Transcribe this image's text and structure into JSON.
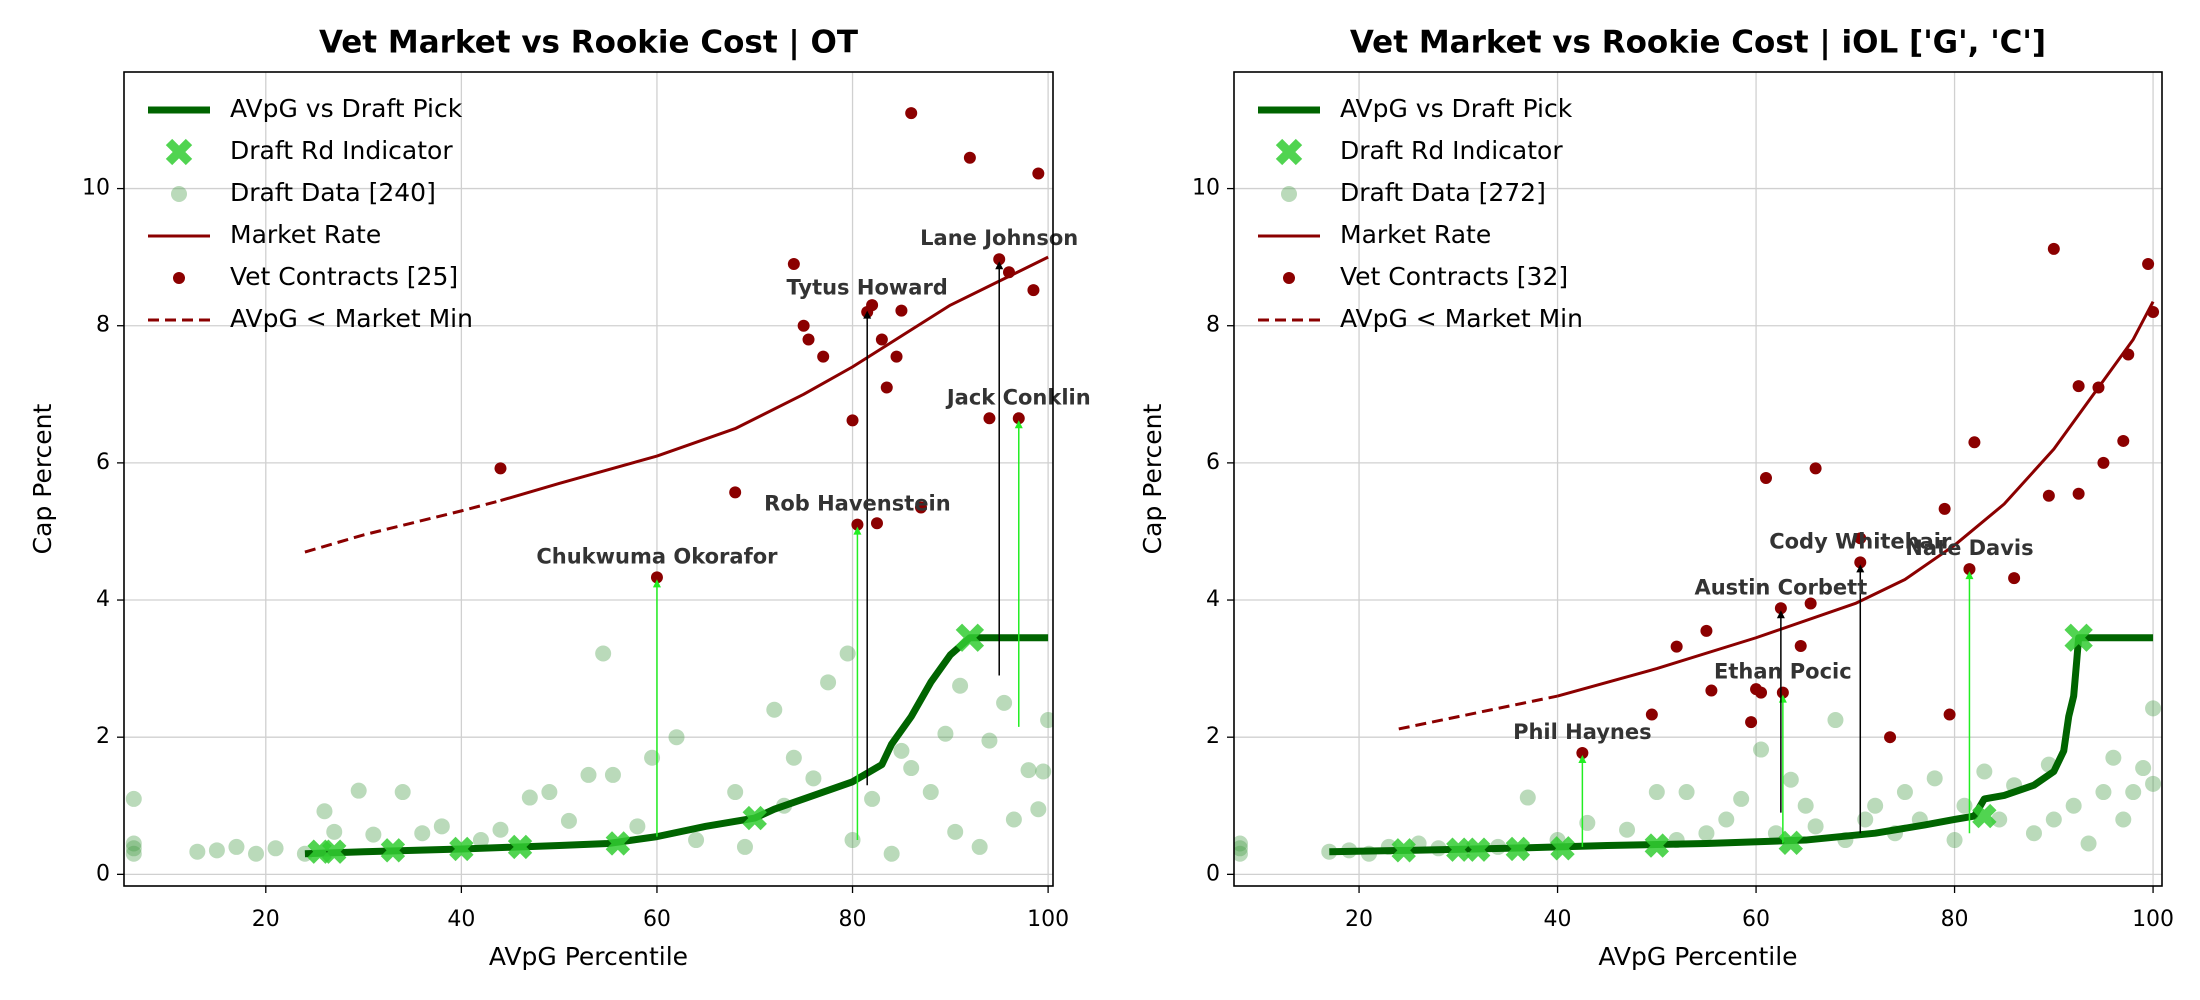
{
  "chart_data": [
    {
      "type": "scatter",
      "title": "Vet Market vs Rookie Cost | OT",
      "xlabel": "AVpG Percentile",
      "ylabel": "Cap Percent",
      "xlim": [
        5.5,
        100.5
      ],
      "ylim": [
        -0.17,
        11.7
      ],
      "xticks": [
        20,
        40,
        60,
        80,
        100
      ],
      "yticks": [
        0,
        2,
        4,
        6,
        8,
        10
      ],
      "grid": true,
      "legend": "upper left",
      "series": [
        {
          "name": "AVpG vs Draft Pick",
          "kind": "line",
          "color": "#006400",
          "x": [
            24,
            30,
            40,
            50,
            55,
            60,
            65,
            70,
            72,
            75,
            80,
            83,
            84,
            86,
            88,
            90,
            92,
            100
          ],
          "values": [
            0.3,
            0.33,
            0.37,
            0.42,
            0.45,
            0.55,
            0.7,
            0.82,
            0.95,
            1.1,
            1.35,
            1.6,
            1.9,
            2.3,
            2.8,
            3.2,
            3.45,
            3.45
          ]
        },
        {
          "name": "Draft Rd Indicator",
          "kind": "cross",
          "color": "#32cd32",
          "x": [
            25.5,
            27,
            33,
            40,
            46,
            56,
            70,
            92
          ],
          "values": [
            0.33,
            0.33,
            0.35,
            0.37,
            0.4,
            0.45,
            0.82,
            3.45
          ]
        },
        {
          "name": "Draft Data [240]",
          "kind": "faint",
          "color": "#4a9e4a",
          "x": [
            6.5,
            6.5,
            6.5,
            6.5,
            13,
            15,
            17,
            19,
            21,
            24,
            26,
            27,
            29.5,
            31,
            34,
            36,
            38,
            42,
            44,
            47,
            49,
            51,
            53,
            54.5,
            55.5,
            58,
            59.5,
            62,
            64,
            68,
            69,
            72,
            73,
            74,
            76,
            77.5,
            79.5,
            80,
            82,
            84,
            85,
            86,
            88,
            89.5,
            90.5,
            91,
            93,
            94,
            95.5,
            96.5,
            98,
            99,
            100,
            99.5
          ],
          "values": [
            1.1,
            0.3,
            0.38,
            0.45,
            0.33,
            0.35,
            0.4,
            0.3,
            0.38,
            0.3,
            0.92,
            0.62,
            1.22,
            0.58,
            1.2,
            0.6,
            0.7,
            0.5,
            0.65,
            1.12,
            1.2,
            0.78,
            1.45,
            3.22,
            1.45,
            0.7,
            1.7,
            2.0,
            0.5,
            1.2,
            0.4,
            2.4,
            1.0,
            1.7,
            1.4,
            2.8,
            3.22,
            0.5,
            1.1,
            0.3,
            1.8,
            1.55,
            1.2,
            2.05,
            0.62,
            2.75,
            0.4,
            1.95,
            2.5,
            0.8,
            1.52,
            0.95,
            2.25,
            1.5
          ]
        },
        {
          "name": "Market Rate",
          "kind": "line",
          "color": "#8b0000",
          "x": [
            44,
            50,
            60,
            68,
            75,
            80,
            85,
            90,
            95,
            100
          ],
          "values": [
            5.45,
            5.7,
            6.1,
            6.5,
            7.0,
            7.4,
            7.85,
            8.3,
            8.65,
            9.0
          ]
        },
        {
          "name": "Vet Contracts [25]",
          "kind": "point",
          "color": "#8b0000",
          "x": [
            44,
            60,
            68,
            74,
            75,
            75.5,
            77,
            80,
            80.5,
            81.5,
            82,
            82.5,
            83,
            83.5,
            84.5,
            85,
            86,
            87,
            92,
            94,
            95,
            96,
            97,
            98.5,
            99
          ],
          "values": [
            5.92,
            4.33,
            5.57,
            8.9,
            8.0,
            7.8,
            7.55,
            6.62,
            5.1,
            8.2,
            8.3,
            5.12,
            7.8,
            7.1,
            7.55,
            8.22,
            11.1,
            5.35,
            10.45,
            6.65,
            8.97,
            8.78,
            6.65,
            8.52,
            10.22
          ]
        },
        {
          "name": "AVpG < Market Min",
          "kind": "dashed",
          "color": "#8b0000",
          "x": [
            24,
            30,
            40,
            44
          ],
          "values": [
            4.7,
            4.95,
            5.3,
            5.45
          ]
        }
      ],
      "annotations": [
        {
          "text": "Chukwuma Okorafor",
          "x": 60,
          "y": 4.33,
          "arrow_from": 0.55,
          "color": "#22ee22"
        },
        {
          "text": "Rob Havenstein",
          "x": 80.5,
          "y": 5.1,
          "arrow_from": 0.5,
          "color": "#22ee22"
        },
        {
          "text": "Tytus Howard",
          "x": 81.5,
          "y": 8.25,
          "arrow_from": 1.3,
          "color": "#000000"
        },
        {
          "text": "Lane Johnson",
          "x": 95,
          "y": 8.97,
          "arrow_from": 2.9,
          "color": "#000000"
        },
        {
          "text": "Jack Conklin",
          "x": 97,
          "y": 6.65,
          "arrow_from": 2.15,
          "color": "#22ee22"
        }
      ]
    },
    {
      "type": "scatter",
      "title": "Vet Market vs Rookie Cost | iOL ['G', 'C']",
      "xlabel": "AVpG Percentile",
      "ylabel": "Cap Percent",
      "xlim": [
        7.4,
        100.9
      ],
      "ylim": [
        -0.17,
        11.7
      ],
      "xticks": [
        20,
        40,
        60,
        80,
        100
      ],
      "yticks": [
        0,
        2,
        4,
        6,
        8,
        10
      ],
      "grid": true,
      "legend": "upper left",
      "series": [
        {
          "name": "AVpG vs Draft Pick",
          "kind": "line",
          "color": "#006400",
          "x": [
            17,
            25,
            35,
            45,
            55,
            65,
            72,
            77,
            80,
            82,
            83,
            85,
            88,
            90,
            91,
            91.5,
            92,
            92.3,
            92.5,
            100
          ],
          "values": [
            0.33,
            0.35,
            0.38,
            0.42,
            0.45,
            0.5,
            0.6,
            0.72,
            0.8,
            0.85,
            1.1,
            1.15,
            1.3,
            1.5,
            1.8,
            2.3,
            2.6,
            3.1,
            3.45,
            3.45
          ]
        },
        {
          "name": "Draft Rd Indicator",
          "kind": "cross",
          "color": "#32cd32",
          "x": [
            24.5,
            30,
            32,
            36,
            40.5,
            50,
            63.5,
            83,
            92.5
          ],
          "values": [
            0.35,
            0.36,
            0.36,
            0.37,
            0.38,
            0.42,
            0.46,
            0.85,
            3.45
          ]
        },
        {
          "name": "Draft Data [272]",
          "kind": "faint",
          "color": "#4a9e4a",
          "x": [
            8,
            8,
            8,
            17,
            19,
            21,
            23,
            26,
            28,
            34,
            37,
            40,
            43,
            47,
            50,
            52,
            53,
            55,
            57,
            58.5,
            60.5,
            62,
            63.5,
            65,
            66,
            68,
            69,
            71,
            72,
            74,
            75,
            76.5,
            78,
            80,
            81,
            83,
            84.5,
            86,
            88,
            89.5,
            90,
            92,
            93.5,
            95,
            96,
            97,
            98,
            99,
            100,
            100
          ],
          "values": [
            0.3,
            0.38,
            0.45,
            0.33,
            0.35,
            0.3,
            0.4,
            0.45,
            0.38,
            0.4,
            1.12,
            0.5,
            0.75,
            0.65,
            1.2,
            0.5,
            1.2,
            0.6,
            0.8,
            1.1,
            1.82,
            0.6,
            1.38,
            1.0,
            0.7,
            2.25,
            0.5,
            0.8,
            1.0,
            0.6,
            1.2,
            0.8,
            1.4,
            0.5,
            1.0,
            1.5,
            0.8,
            1.3,
            0.6,
            1.6,
            0.8,
            1.0,
            0.45,
            1.2,
            1.7,
            0.8,
            1.2,
            1.55,
            2.42,
            1.32
          ]
        },
        {
          "name": "Market Rate",
          "kind": "line",
          "color": "#8b0000",
          "x": [
            40,
            50,
            60,
            70,
            75,
            80,
            85,
            90,
            95,
            98,
            100
          ],
          "values": [
            2.6,
            3.0,
            3.45,
            3.95,
            4.3,
            4.8,
            5.4,
            6.2,
            7.2,
            7.8,
            8.35
          ]
        },
        {
          "name": "Vet Contracts [32]",
          "kind": "point",
          "color": "#8b0000",
          "x": [
            42.5,
            49.5,
            52,
            55,
            55.5,
            59.5,
            60,
            60.5,
            61,
            62.5,
            62.7,
            64.5,
            65.5,
            66,
            70.5,
            70.5,
            73.5,
            79,
            79.5,
            81.5,
            82,
            86,
            89.5,
            90,
            92.5,
            92.5,
            94.5,
            95,
            97,
            97.5,
            99.5,
            100
          ],
          "values": [
            1.77,
            2.33,
            3.32,
            3.55,
            2.68,
            2.22,
            2.7,
            2.65,
            5.78,
            3.88,
            2.65,
            3.33,
            3.95,
            5.92,
            4.55,
            4.9,
            2.0,
            5.33,
            2.33,
            4.45,
            6.3,
            4.32,
            5.52,
            9.12,
            7.12,
            5.55,
            7.1,
            6.0,
            6.32,
            7.58,
            8.9,
            8.2
          ]
        },
        {
          "name": "AVpG < Market Min",
          "kind": "dashed",
          "color": "#8b0000",
          "x": [
            24,
            30,
            40
          ],
          "values": [
            2.12,
            2.3,
            2.6
          ]
        }
      ],
      "annotations": [
        {
          "text": "Phil Haynes",
          "x": 42.5,
          "y": 1.77,
          "arrow_from": 0.4,
          "color": "#22ee22"
        },
        {
          "text": "Ethan Pocic",
          "x": 62.7,
          "y": 2.65,
          "arrow_from": 0.45,
          "color": "#22ee22"
        },
        {
          "text": "Austin Corbett",
          "x": 62.5,
          "y": 3.88,
          "arrow_from": 0.9,
          "color": "#000000"
        },
        {
          "text": "Cody Whitehair",
          "x": 70.5,
          "y": 4.55,
          "arrow_from": 0.6,
          "color": "#000000"
        },
        {
          "text": "Nate Davis",
          "x": 81.5,
          "y": 4.45,
          "arrow_from": 0.6,
          "color": "#22ee22"
        }
      ]
    }
  ]
}
